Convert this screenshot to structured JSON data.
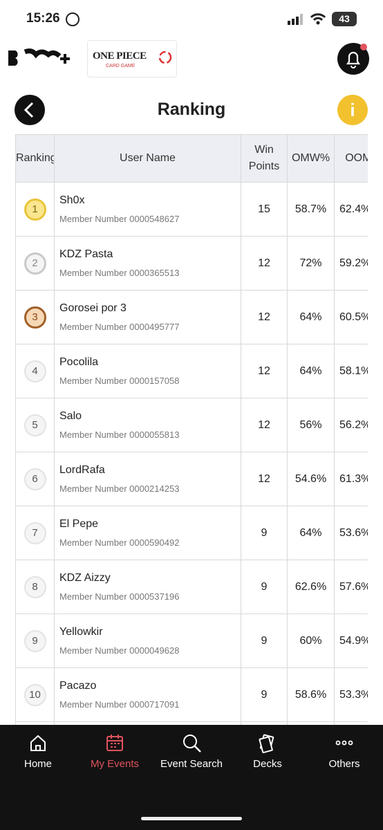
{
  "status_bar": {
    "time": "15:26",
    "battery": "43"
  },
  "header": {
    "brand_title": "ONE PIECE",
    "brand_subtitle": "CARD GAME"
  },
  "page": {
    "title": "Ranking",
    "info_icon": "i"
  },
  "table": {
    "headers": [
      "Ranking",
      "User Name",
      "Win Points",
      "OMW%",
      "OOMW%"
    ],
    "rows": [
      {
        "rank": "1",
        "name": "Sh0x",
        "member": "Member Number 0000548627",
        "win_points": "15",
        "omw": "58.7%",
        "oomw": "62.4%"
      },
      {
        "rank": "2",
        "name": "KDZ Pasta",
        "member": "Member Number 0000365513",
        "win_points": "12",
        "omw": "72%",
        "oomw": "59.2%"
      },
      {
        "rank": "3",
        "name": "Gorosei por 3",
        "member": "Member Number 0000495777",
        "win_points": "12",
        "omw": "64%",
        "oomw": "60.5%"
      },
      {
        "rank": "4",
        "name": "Pocolila",
        "member": "Member Number 0000157058",
        "win_points": "12",
        "omw": "64%",
        "oomw": "58.1%"
      },
      {
        "rank": "5",
        "name": "Salo",
        "member": "Member Number 0000055813",
        "win_points": "12",
        "omw": "56%",
        "oomw": "56.2%"
      },
      {
        "rank": "6",
        "name": "LordRafa",
        "member": "Member Number 0000214253",
        "win_points": "12",
        "omw": "54.6%",
        "oomw": "61.3%"
      },
      {
        "rank": "7",
        "name": "El Pepe",
        "member": "Member Number 0000590492",
        "win_points": "9",
        "omw": "64%",
        "oomw": "53.6%"
      },
      {
        "rank": "8",
        "name": "KDZ Aizzy",
        "member": "Member Number 0000537196",
        "win_points": "9",
        "omw": "62.6%",
        "oomw": "57.6%"
      },
      {
        "rank": "9",
        "name": "Yellowkir",
        "member": "Member Number 0000049628",
        "win_points": "9",
        "omw": "60%",
        "oomw": "54.9%"
      },
      {
        "rank": "10",
        "name": "Pacazo",
        "member": "Member Number 0000717091",
        "win_points": "9",
        "omw": "58.6%",
        "oomw": "53.3%"
      }
    ]
  },
  "nav": [
    "Home",
    "My Events",
    "Event Search",
    "Decks",
    "Others"
  ]
}
